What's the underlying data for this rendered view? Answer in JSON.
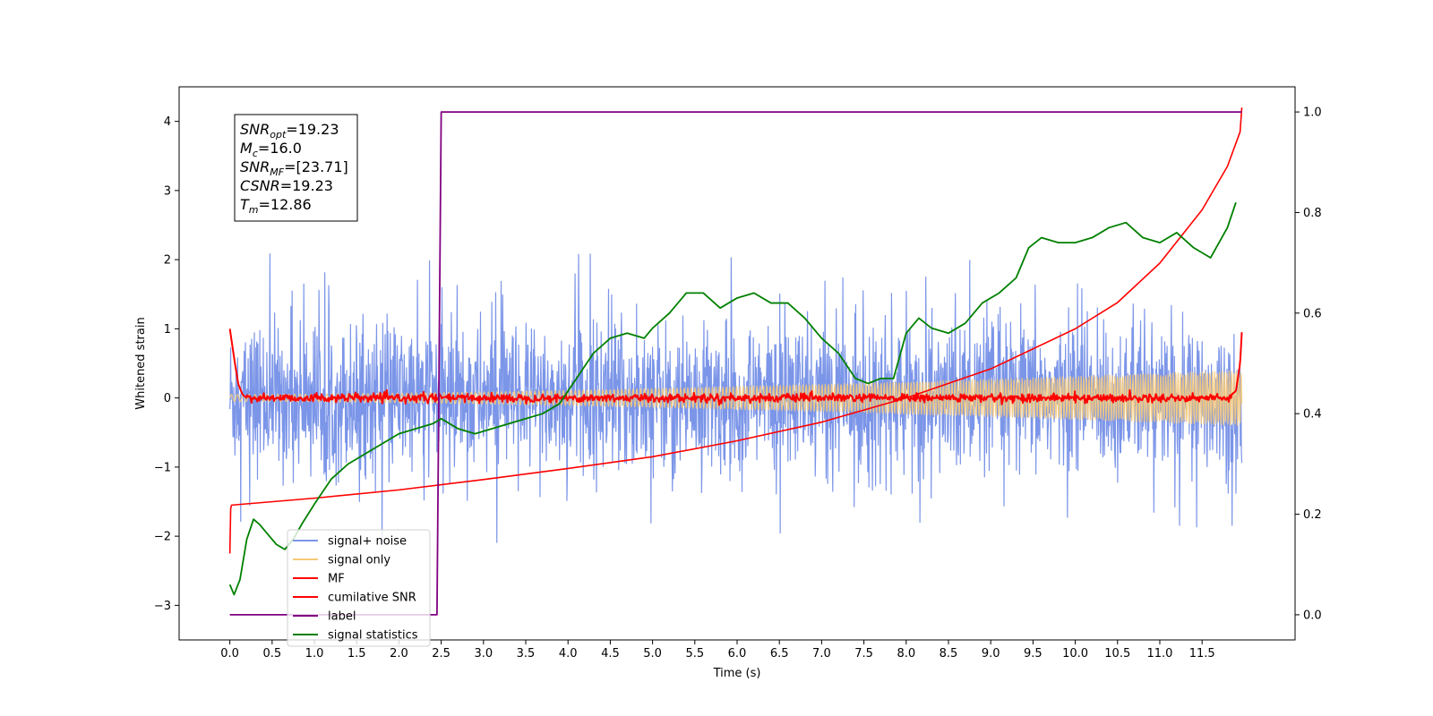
{
  "chart_data": {
    "type": "line",
    "xlabel": "Time (s)",
    "ylabel": "Whitened strain",
    "x_ticks": [
      0.0,
      0.5,
      1.0,
      1.5,
      2.0,
      2.5,
      3.0,
      3.5,
      4.0,
      4.5,
      5.0,
      5.5,
      6.0,
      6.5,
      7.0,
      7.5,
      8.0,
      8.5,
      9.0,
      9.5,
      10.0,
      10.5,
      11.0,
      11.5
    ],
    "x_tick_labels": [
      "0.0",
      "0.5",
      "1.0",
      "1.5",
      "2.0",
      "2.5",
      "3.0",
      "3.5",
      "4.0",
      "4.5",
      "5.0",
      "5.5",
      "6.0",
      "6.5",
      "7.0",
      "7.5",
      "8.0",
      "8.5",
      "9.0",
      "9.5",
      "10.0",
      "10.5",
      "11.0",
      "11.5"
    ],
    "xlim": [
      -0.6,
      12.6
    ],
    "ylim_left": [
      -3.5,
      4.5
    ],
    "y_ticks_left": [
      -3,
      -2,
      -1,
      0,
      1,
      2,
      3,
      4
    ],
    "y_tick_labels_left": [
      "−3",
      "−2",
      "−1",
      "0",
      "1",
      "2",
      "3",
      "4"
    ],
    "ylim_right": [
      -0.05,
      1.05
    ],
    "y_ticks_right": [
      0.0,
      0.2,
      0.4,
      0.6,
      0.8,
      1.0
    ],
    "y_tick_labels_right": [
      "0.0",
      "0.2",
      "0.4",
      "0.6",
      "0.8",
      "1.0"
    ],
    "grid": false,
    "legend_position": "lower-left",
    "annotation": {
      "lines": [
        {
          "base": "SNR",
          "sub": "opt",
          "value": "=19.23"
        },
        {
          "base": "M",
          "sub": "c",
          "value": "=16.0"
        },
        {
          "base": "SNR",
          "sub": "MF",
          "value": "=[23.71]"
        },
        {
          "base": "CSNR",
          "sub": "",
          "value": "=19.23"
        },
        {
          "base": "T",
          "sub": "m",
          "value": "=12.86"
        }
      ]
    },
    "series": [
      {
        "name": "signal+ noise",
        "color": "#7b95e8",
        "axis": "left",
        "kind": "noise",
        "x_range": [
          0.0,
          11.97
        ],
        "std": 0.52,
        "spikes_max": 2.2,
        "spikes_min": -2.2
      },
      {
        "name": "signal only",
        "color": "#f5c97a",
        "axis": "left",
        "kind": "chirp",
        "x_range": [
          0.0,
          11.97
        ],
        "amplitude_start": 0.05,
        "amplitude_end": 0.4
      },
      {
        "name": "MF",
        "color": "#ff0000",
        "axis": "left",
        "kind": "mf",
        "x": [
          0.0,
          0.03,
          0.06,
          0.1,
          0.15,
          0.2,
          0.3,
          11.6,
          11.8,
          11.9,
          11.95,
          11.97
        ],
        "y": [
          1.0,
          0.75,
          0.5,
          0.2,
          0.05,
          0.0,
          0.0,
          0.0,
          0.0,
          0.1,
          0.5,
          0.95
        ]
      },
      {
        "name": "cumilative SNR",
        "color": "#ff0000",
        "axis": "left",
        "x": [
          0.0,
          0.01,
          0.02,
          1.0,
          2.0,
          3.0,
          4.0,
          5.0,
          6.0,
          7.0,
          8.0,
          9.0,
          10.0,
          10.5,
          11.0,
          11.5,
          11.8,
          11.95,
          11.97
        ],
        "y": [
          -2.25,
          -1.6,
          -1.55,
          -1.45,
          -1.33,
          -1.18,
          -1.02,
          -0.85,
          -0.62,
          -0.35,
          0.0,
          0.42,
          1.0,
          1.38,
          1.95,
          2.72,
          3.35,
          3.85,
          4.2
        ]
      },
      {
        "name": "label",
        "color": "#800080",
        "axis": "right",
        "x": [
          0.0,
          2.45,
          2.45,
          2.5,
          2.5,
          11.97
        ],
        "y": [
          0.0,
          0.0,
          0.0,
          1.0,
          1.0,
          1.0
        ]
      },
      {
        "name": "signal statistics",
        "color": "#008000",
        "axis": "right",
        "x": [
          0.0,
          0.05,
          0.12,
          0.2,
          0.28,
          0.35,
          0.45,
          0.55,
          0.65,
          0.75,
          0.85,
          1.0,
          1.2,
          1.4,
          1.6,
          1.8,
          2.0,
          2.2,
          2.4,
          2.5,
          2.7,
          2.9,
          3.1,
          3.3,
          3.5,
          3.7,
          3.9,
          4.1,
          4.3,
          4.5,
          4.7,
          4.9,
          5.0,
          5.2,
          5.4,
          5.6,
          5.8,
          6.0,
          6.2,
          6.4,
          6.6,
          6.8,
          7.0,
          7.2,
          7.4,
          7.55,
          7.7,
          7.85,
          8.0,
          8.15,
          8.3,
          8.5,
          8.7,
          8.9,
          9.1,
          9.3,
          9.45,
          9.6,
          9.8,
          10.0,
          10.2,
          10.4,
          10.6,
          10.8,
          11.0,
          11.2,
          11.4,
          11.6,
          11.8,
          11.9
        ],
        "y": [
          0.06,
          0.04,
          0.07,
          0.15,
          0.19,
          0.18,
          0.16,
          0.14,
          0.13,
          0.15,
          0.18,
          0.22,
          0.27,
          0.3,
          0.32,
          0.34,
          0.36,
          0.37,
          0.38,
          0.39,
          0.37,
          0.36,
          0.37,
          0.38,
          0.39,
          0.4,
          0.42,
          0.47,
          0.52,
          0.55,
          0.56,
          0.55,
          0.57,
          0.6,
          0.64,
          0.64,
          0.61,
          0.63,
          0.64,
          0.62,
          0.62,
          0.59,
          0.55,
          0.52,
          0.47,
          0.46,
          0.47,
          0.47,
          0.56,
          0.59,
          0.57,
          0.56,
          0.58,
          0.62,
          0.64,
          0.67,
          0.73,
          0.75,
          0.74,
          0.74,
          0.75,
          0.77,
          0.78,
          0.75,
          0.74,
          0.76,
          0.73,
          0.71,
          0.77,
          0.82
        ]
      }
    ]
  }
}
